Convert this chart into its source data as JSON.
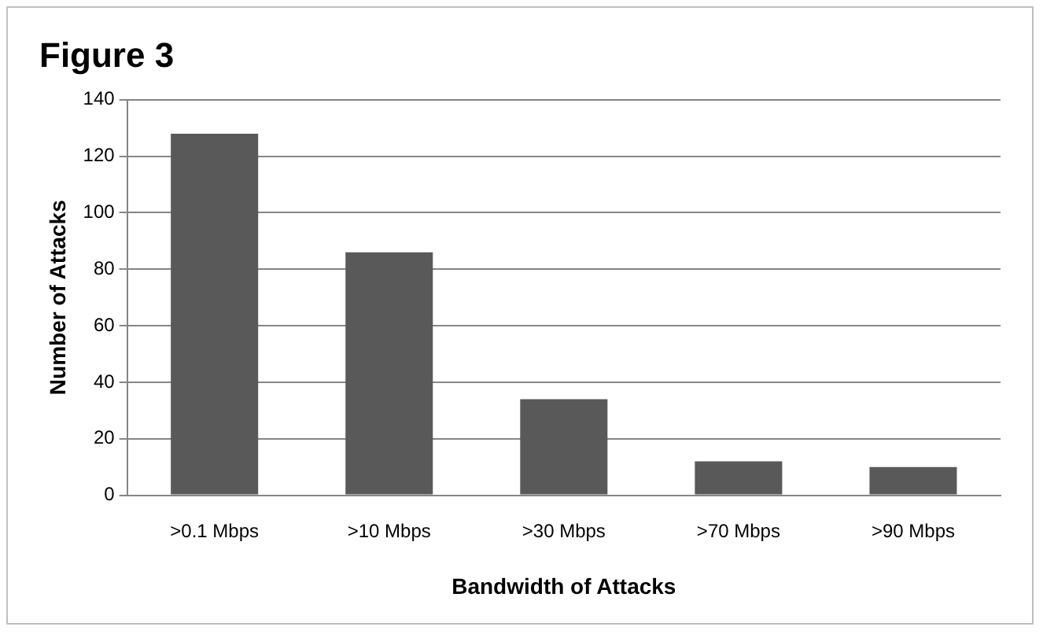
{
  "chart_data": {
    "type": "bar",
    "title": "Figure 3",
    "xlabel": "Bandwidth of Attacks",
    "ylabel": "Number of Attacks",
    "categories": [
      ">0.1 Mbps",
      ">10 Mbps",
      ">30 Mbps",
      ">70 Mbps",
      ">90 Mbps"
    ],
    "values": [
      128,
      86,
      34,
      12,
      10
    ],
    "color": "#595959",
    "ylim": [
      0,
      140
    ],
    "yticks": [
      0,
      20,
      40,
      60,
      80,
      100,
      120,
      140
    ],
    "grid": "y",
    "legend": false
  }
}
